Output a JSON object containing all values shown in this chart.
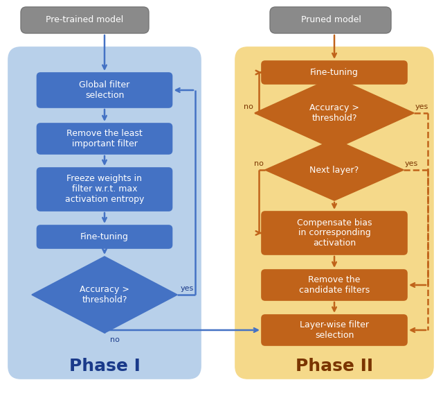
{
  "bg_color": "#ffffff",
  "phase1_bg": "#b8d0ea",
  "phase2_bg": "#f5d98a",
  "blue_box_color": "#4472c4",
  "orange_box_color": "#c0631a",
  "gray_box_color": "#8a8a8a",
  "blue_arrow": "#4472c4",
  "orange_arrow": "#c0631a",
  "dark_blue_text": "#1a3a8a",
  "dark_orange_text": "#7a3500",
  "phase1_label": "Phase I",
  "phase2_label": "Phase II",
  "pretrained_label": "Pre-trained model",
  "pruned_label": "Pruned model",
  "p1_box1": "Global filter\nselection",
  "p1_box2": "Remove the least\nimportant filter",
  "p1_box3": "Freeze weights in\nfilter w.r.t. max\nactivation entropy",
  "p1_box4": "Fine-tuning",
  "p1_diamond": "Accuracy >\nthreshold?",
  "p2_box1": "Fine-tuning",
  "p2_diamond1": "Accuracy >\nthreshold?",
  "p2_diamond2": "Next layer?",
  "p2_box2": "Compensate bias\nin corresponding\nactivation",
  "p2_box3": "Remove the\ncandidate filters",
  "p2_box4": "Layer-wise filter\nselection",
  "yes_label": "yes",
  "no_label": "no"
}
